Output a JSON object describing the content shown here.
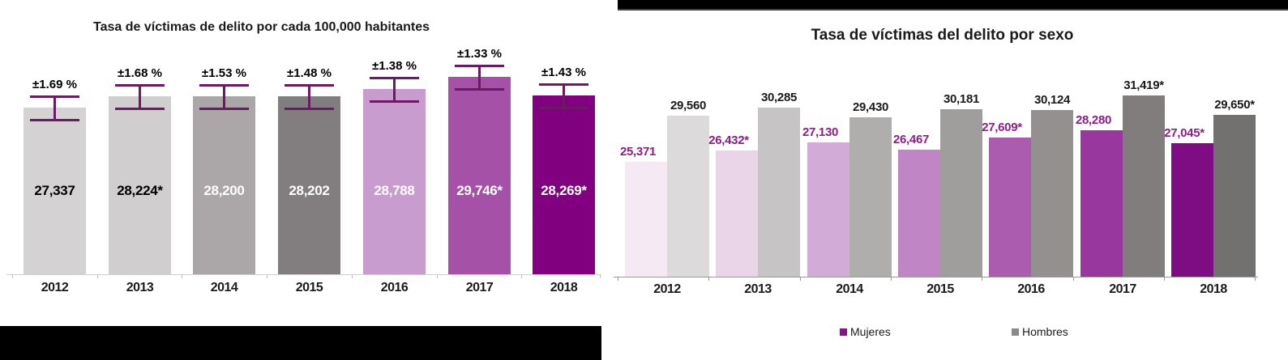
{
  "chart_data": [
    {
      "type": "bar",
      "title": "Tasa de víctimas de delito por cada 100,000 habitantes",
      "categories": [
        "2012",
        "2013",
        "2014",
        "2015",
        "2016",
        "2017",
        "2018"
      ],
      "values": [
        27337,
        28224,
        28200,
        28202,
        28788,
        29746,
        28269
      ],
      "value_labels": [
        "27,337",
        "28,224*",
        "28,200",
        "28,202",
        "28,788",
        "29,746*",
        "28,269*"
      ],
      "error_labels": [
        "±1.69 %",
        "±1.68 %",
        "±1.53 %",
        "±1.48 %",
        "±1.38 %",
        "±1.33 %",
        "±1.43 %"
      ],
      "bar_colors": [
        "#d4d2d2",
        "#d0cecf",
        "#aba7a8",
        "#827d7e",
        "#c99ccf",
        "#a651a8",
        "#800080"
      ],
      "value_label_colors": [
        "#000000",
        "#000000",
        "#ffffff",
        "#ffffff",
        "#ffffff",
        "#ffffff",
        "#ffffff"
      ],
      "error_bar_color": "#6d1a66",
      "xlabel": "",
      "ylabel": "",
      "grid": "off",
      "legend_position": "none"
    },
    {
      "type": "grouped-bar",
      "title": "Tasa de víctimas del delito por sexo",
      "categories": [
        "2012",
        "2013",
        "2014",
        "2015",
        "2016",
        "2017",
        "2018"
      ],
      "series": [
        {
          "name": "Mujeres",
          "values": [
            25371,
            26432,
            27130,
            26467,
            27609,
            28280,
            27045
          ],
          "value_labels": [
            "25,371",
            "26,432*",
            "27,130",
            "26,467",
            "27,609*",
            "28,280",
            "27,045*"
          ],
          "colors": [
            "#f5e9f3",
            "#e9d5e7",
            "#d3abd7",
            "#bf85c5",
            "#ab5caf",
            "#98379d",
            "#7e0c83"
          ],
          "label_color": "#8e1d8a"
        },
        {
          "name": "Hombres",
          "values": [
            29560,
            30285,
            29430,
            30181,
            30124,
            31419,
            29650
          ],
          "value_labels": [
            "29,560",
            "30,285",
            "29,430",
            "30,181",
            "30,124",
            "31,419*",
            "29,650*"
          ],
          "colors": [
            "#dcdada",
            "#c7c4c5",
            "#b0adad",
            "#a09d9d",
            "#949090",
            "#817d7d",
            "#737070"
          ],
          "label_color": "#1a1a1a"
        }
      ],
      "legend": [
        {
          "label": "Mujeres",
          "color": "#7d1a80"
        },
        {
          "label": "Hombres",
          "color": "#8d8989"
        }
      ],
      "xlabel": "",
      "ylabel": "",
      "grid": "off",
      "legend_position": "bottom"
    }
  ],
  "decorations": {
    "left_black_bar": "#000000",
    "right_black_band": "#000000"
  }
}
